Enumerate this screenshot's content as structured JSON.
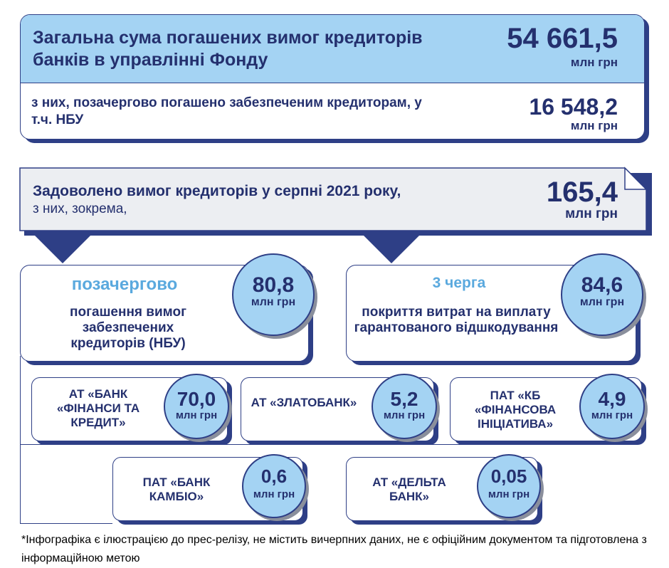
{
  "total": {
    "title": "Загальна сума погашених вимог кредиторів банків в управлінні Фонду",
    "value": "54 661,5",
    "unit": "млн грн"
  },
  "priority_total": {
    "text": "з них, позачергово погашено забезпеченим кредиторам, у т.ч. НБУ",
    "value": "16 548,2",
    "unit": "млн грн"
  },
  "august": {
    "title": "Задоволено вимог кредиторів у серпні 2021 року,",
    "subtitle": "з них, зокрема,",
    "value": "165,4",
    "unit": "млн грн"
  },
  "left_branch": {
    "heading": "позачергово",
    "text": "погашення вимог забезпечених кредиторів (НБУ)",
    "value": "80,8",
    "unit": "млн грн"
  },
  "right_branch": {
    "heading": "3 черга",
    "text": "покриття витрат на виплату гарантованого відшкодування",
    "value": "84,6",
    "unit": "млн грн"
  },
  "banks": [
    {
      "name": "АТ «БАНК «ФІНАНСИ ТА КРЕДИТ»",
      "value": "70,0",
      "unit": "млн грн"
    },
    {
      "name": "АТ «ЗЛАТОБАНК»",
      "value": "5,2",
      "unit": "млн грн"
    },
    {
      "name": "ПАТ «КБ «ФІНАНСОВА ІНІЦІАТИВА»",
      "value": "4,9",
      "unit": "млн грн"
    },
    {
      "name": "ПАТ «БАНК КАМБІО»",
      "value": "0,6",
      "unit": "млн грн"
    },
    {
      "name": "АТ «ДЕЛЬТА БАНК»",
      "value": "0,05",
      "unit": "млн грн"
    }
  ],
  "footnote": "*Інфографіка є ілюстрацією до прес-релізу, не містить вичерпних даних, не є офіційним документом та підготовлена з інформаційною метою",
  "colors": {
    "navy": "#24306e",
    "light_blue": "#a4d3f3",
    "grey_panel": "#eceef2"
  }
}
